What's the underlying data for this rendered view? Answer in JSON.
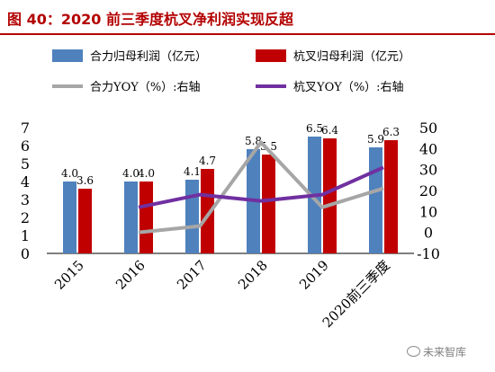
{
  "header": {
    "title": "图 40：2020 前三季度杭叉净利润实现反超"
  },
  "watermark": {
    "text": "未来智库",
    "icon": "wechat-icon"
  },
  "colors": {
    "heli_bar": "#4f81bd",
    "hangcha_bar": "#c00000",
    "heli_line": "#a6a6a6",
    "hangcha_line": "#7030a0",
    "title": "#b30000"
  },
  "chart_data": {
    "type": "bar",
    "categories": [
      "2015",
      "2016",
      "2017",
      "2018",
      "2019",
      "2020前三季度"
    ],
    "series": [
      {
        "name": "合力归母利润（亿元）",
        "kind": "bar",
        "axis": "left",
        "values": [
          4.0,
          4.0,
          4.1,
          5.8,
          6.5,
          5.9
        ],
        "labels": [
          "4.0",
          "4.0",
          "4.1",
          "5.8",
          "6.5",
          "5.9"
        ]
      },
      {
        "name": "杭叉归母利润（亿元）",
        "kind": "bar",
        "axis": "left",
        "values": [
          3.6,
          4.0,
          4.7,
          5.5,
          6.4,
          6.3
        ],
        "labels": [
          "3.6",
          "4.0",
          "4.7",
          "5.5",
          "6.4",
          "6.3"
        ]
      },
      {
        "name": "合力YOY（%）:右轴",
        "kind": "line",
        "axis": "right",
        "values": [
          null,
          0,
          3,
          43,
          12,
          21
        ]
      },
      {
        "name": "杭叉YOY（%）:右轴",
        "kind": "line",
        "axis": "right",
        "values": [
          null,
          12,
          18,
          15,
          18,
          31
        ]
      }
    ],
    "left_axis": {
      "min": 0,
      "max": 7,
      "ticks": [
        "0",
        "1",
        "2",
        "3",
        "4",
        "5",
        "6",
        "7"
      ]
    },
    "right_axis": {
      "min": -10,
      "max": 50,
      "ticks": [
        "-10",
        "0",
        "10",
        "20",
        "30",
        "40",
        "50"
      ]
    },
    "legend_position": "top",
    "grid": false
  }
}
